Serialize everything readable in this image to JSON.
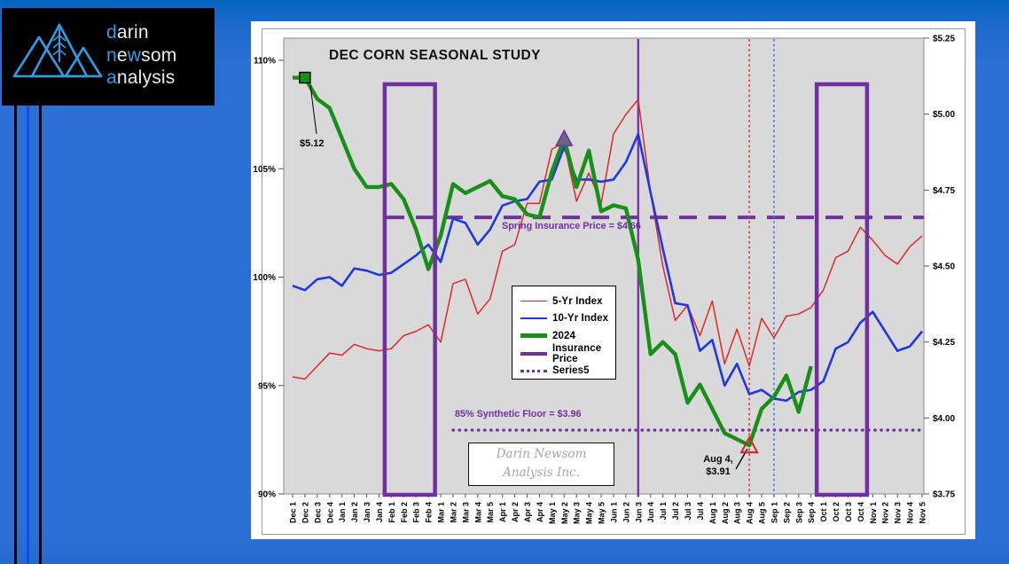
{
  "logo": {
    "accent_color": "#2d9de6",
    "text_color": "#ececec",
    "bg_color": "#000000",
    "words": [
      {
        "segments": [
          {
            "t": "d",
            "accent": true
          },
          {
            "t": "arin",
            "accent": false
          }
        ]
      },
      {
        "segments": [
          {
            "t": "n",
            "accent": true
          },
          {
            "t": "e",
            "accent": false
          },
          {
            "t": "w",
            "accent": true
          },
          {
            "t": "som",
            "accent": false
          }
        ]
      },
      {
        "segments": [
          {
            "t": "a",
            "accent": true
          },
          {
            "t": "nalysis",
            "accent": false
          }
        ]
      }
    ]
  },
  "chart_data": {
    "type": "line",
    "title": "DEC CORN SEASONAL STUDY",
    "colors": {
      "five_yr": "#e02828",
      "ten_yr": "#2038e0",
      "y2024": "#189018",
      "purple": "#7030a0",
      "red_vline": "#e03030",
      "blue_vline": "#4472e8",
      "plot_bg": "#d9d9d9"
    },
    "left_axis": {
      "unit": "%",
      "min": 90,
      "max": 110,
      "tick_labels": [
        "110%",
        "105%",
        "100%",
        "95%",
        "90%"
      ],
      "tick_values": [
        110,
        105,
        100,
        95,
        90
      ]
    },
    "right_axis": {
      "unit": "$",
      "min": 3.75,
      "max": 5.25,
      "tick_labels": [
        "$5.25",
        "$5.00",
        "$4.75",
        "$4.50",
        "$4.25",
        "$4.00",
        "$3.75"
      ],
      "tick_values": [
        5.25,
        5.0,
        4.75,
        4.5,
        4.25,
        4.0,
        3.75
      ]
    },
    "x_categories": [
      "Dec 1",
      "Dec 2",
      "Dec 3",
      "Dec 4",
      "Jan 1",
      "Jan 2",
      "Jan 3",
      "Jan 4",
      "Feb 1",
      "Feb 2",
      "Feb 3",
      "Feb 4",
      "Mar 1",
      "Mar 2",
      "Mar 3",
      "Mar 4",
      "Mar 5",
      "Apr 1",
      "Apr 2",
      "Apr 3",
      "Apr 4",
      "May 1",
      "May 2",
      "May 3",
      "May 4",
      "May 5",
      "Jun 1",
      "Jun 2",
      "Jun 3",
      "Jun 4",
      "Jul 1",
      "Jul 2",
      "Jul 3",
      "Jul 4",
      "Aug 1",
      "Aug 2",
      "Aug 3",
      "Aug 4",
      "Aug 5",
      "Sep 1",
      "Sep 2",
      "Sep 3",
      "Sep 4",
      "Oct 1",
      "Oct 2",
      "Oct 3",
      "Oct 4",
      "Nov 1",
      "Nov 2",
      "Nov 3",
      "Nov 4",
      "Nov 5"
    ],
    "series": [
      {
        "name": "5-Yr Index",
        "axis": "left",
        "color": "#e02828",
        "width": 1.5,
        "values": [
          95.4,
          95.3,
          95.9,
          96.5,
          96.4,
          96.9,
          96.7,
          96.6,
          96.7,
          97.3,
          97.5,
          97.8,
          97.0,
          99.7,
          99.9,
          98.3,
          99.0,
          101.2,
          101.5,
          103.4,
          103.4,
          105.9,
          106.2,
          103.5,
          104.8,
          103.4,
          106.6,
          107.5,
          108.2,
          103.9,
          100.5,
          98.0,
          98.7,
          97.3,
          98.9,
          96.0,
          97.6,
          95.9,
          98.1,
          97.2,
          98.2,
          98.3,
          98.6,
          99.4,
          100.9,
          101.2,
          102.3,
          101.7,
          101.0,
          100.6,
          101.4,
          101.9
        ]
      },
      {
        "name": "10-Yr Index",
        "axis": "left",
        "color": "#2038e0",
        "width": 2.6,
        "values": [
          99.6,
          99.4,
          99.9,
          100.0,
          99.6,
          100.4,
          100.3,
          100.1,
          100.2,
          100.6,
          101.0,
          101.5,
          100.7,
          102.7,
          102.5,
          101.5,
          102.2,
          103.3,
          103.5,
          103.6,
          104.4,
          104.5,
          106.0,
          104.5,
          104.5,
          104.4,
          104.5,
          105.3,
          106.6,
          103.9,
          101.3,
          98.8,
          98.7,
          96.6,
          97.1,
          95.0,
          96.0,
          94.6,
          94.8,
          94.4,
          94.3,
          94.7,
          94.8,
          95.2,
          96.7,
          97.0,
          97.9,
          98.4,
          97.5,
          96.6,
          96.8,
          97.5
        ]
      },
      {
        "name": "2024",
        "axis": "right",
        "color": "#189018",
        "width": 4.4,
        "values": [
          5.12,
          5.12,
          5.05,
          5.02,
          4.92,
          4.82,
          4.76,
          4.76,
          4.77,
          4.72,
          4.62,
          4.49,
          4.6,
          4.77,
          4.74,
          4.76,
          4.78,
          4.73,
          4.72,
          4.67,
          4.66,
          4.81,
          4.92,
          4.76,
          4.88,
          4.68,
          4.7,
          4.69,
          4.52,
          4.21,
          4.25,
          4.21,
          4.05,
          4.11,
          4.03,
          3.95,
          3.93,
          3.91,
          4.03,
          4.07,
          4.14,
          4.02,
          4.17,
          null,
          null,
          null,
          null,
          null,
          null,
          null,
          null,
          null
        ]
      }
    ],
    "legend": {
      "position": "center",
      "entries": [
        "5-Yr Index",
        "10-Yr Index",
        "2024",
        "Insurance Price",
        "Series5"
      ]
    },
    "reference_lines": {
      "horizontal": [
        {
          "name": "insurance-price",
          "axis": "right",
          "value": 4.66,
          "style": "dashed",
          "color": "#7030a0"
        },
        {
          "name": "synthetic-floor",
          "axis": "right",
          "value": 3.96,
          "style": "dotted",
          "color": "#7030a0"
        }
      ],
      "vertical": [
        {
          "name": "jun3-line",
          "category": "Jun 3",
          "style": "solid",
          "color": "#7a35a8"
        },
        {
          "name": "aug4-line",
          "category": "Aug 4",
          "style": "dotted",
          "color": "#e03030"
        },
        {
          "name": "sep1-line",
          "category": "Sep 1",
          "style": "dotted",
          "color": "#4472e8"
        }
      ]
    },
    "highlight_boxes": [
      {
        "from": "Feb 1",
        "to": "Feb 4",
        "color": "#7030a0"
      },
      {
        "from": "Oct 1",
        "to": "Oct 4",
        "color": "#7030a0"
      }
    ],
    "markers": [
      {
        "category": "Dec 2",
        "series": "2024",
        "shape": "square",
        "fill": "#189018",
        "stroke": "#000000"
      },
      {
        "category": "May 2",
        "series": "2024",
        "shape": "triangle",
        "fill": "#6e6488",
        "stroke": "#7030a0"
      },
      {
        "category": "Aug 4",
        "series": "2024",
        "shape": "triangle-outline",
        "fill": "none",
        "stroke": "#e02020"
      }
    ],
    "annotations": [
      {
        "id": "start-price",
        "text": "$5.12"
      },
      {
        "id": "spring-insurance",
        "text": "Spring Insurance Price = $4.66"
      },
      {
        "id": "synthetic-floor",
        "text": "85% Synthetic Floor = $3.96"
      },
      {
        "id": "aug4-low",
        "line1": "Aug 4,",
        "line2": "$3.91"
      },
      {
        "id": "watermark",
        "line1": "Darin Newsom",
        "line2": "Analysis Inc."
      }
    ]
  }
}
